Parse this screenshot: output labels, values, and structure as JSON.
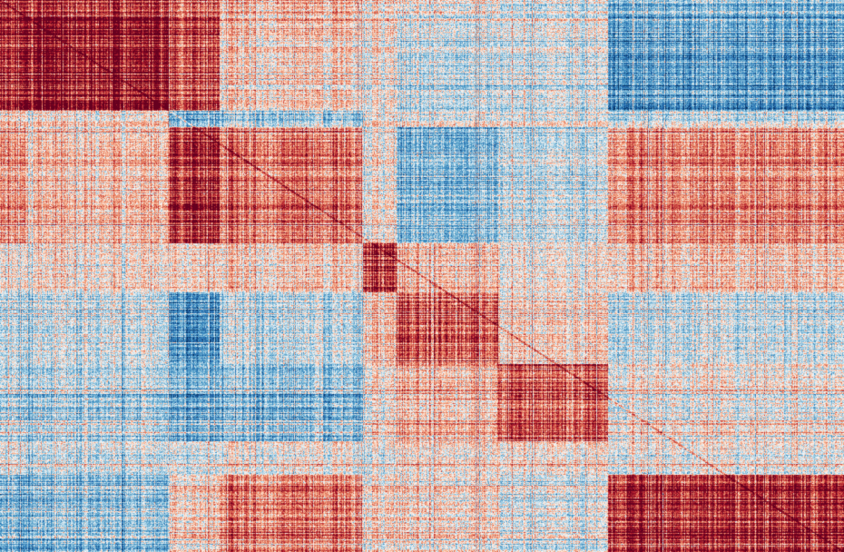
{
  "chart_data": {
    "type": "heatmap",
    "title": "",
    "xlabel": "",
    "ylabel": "",
    "colormap": "RdBu_r",
    "value_range": [
      -1,
      1
    ],
    "grid": false,
    "legend": "none",
    "colors": {
      "negative_strong": "#2166ac",
      "negative_mid": "#92c5de",
      "neutral": "#f7f7f7",
      "positive_mid": "#f4a582",
      "positive_strong": "#67001f"
    },
    "row_clusters": [
      {
        "id": "R0",
        "size": 0.03
      },
      {
        "id": "R1",
        "size": 0.17
      },
      {
        "id": "R2",
        "size": 0.03
      },
      {
        "id": "R3",
        "size": 0.21
      },
      {
        "id": "R4",
        "size": 0.09
      },
      {
        "id": "R5",
        "size": 0.13
      },
      {
        "id": "R6",
        "size": 0.14
      },
      {
        "id": "R7",
        "size": 0.06
      },
      {
        "id": "R8",
        "size": 0.14
      }
    ],
    "col_clusters": [
      {
        "id": "C0",
        "size": 0.03
      },
      {
        "id": "C1",
        "size": 0.17
      },
      {
        "id": "C2",
        "size": 0.06
      },
      {
        "id": "C3",
        "size": 0.17
      },
      {
        "id": "C4",
        "size": 0.04
      },
      {
        "id": "C5",
        "size": 0.12
      },
      {
        "id": "C6",
        "size": 0.13
      },
      {
        "id": "C7",
        "size": 0.28
      }
    ],
    "block_values": [
      [
        0.7,
        0.65,
        0.45,
        0.25,
        0.1,
        0.05,
        -0.05,
        -0.3
      ],
      [
        0.75,
        0.85,
        0.55,
        0.15,
        0.05,
        -0.1,
        -0.05,
        -0.45
      ],
      [
        0.1,
        0.05,
        -0.3,
        -0.2,
        0.05,
        0.0,
        0.0,
        -0.1
      ],
      [
        0.3,
        0.15,
        0.7,
        0.45,
        0.05,
        -0.3,
        -0.1,
        0.35
      ],
      [
        0.0,
        0.05,
        0.1,
        0.15,
        0.7,
        0.2,
        0.05,
        0.15
      ],
      [
        -0.15,
        -0.1,
        -0.45,
        -0.1,
        0.2,
        0.55,
        0.15,
        -0.1
      ],
      [
        -0.2,
        -0.2,
        -0.35,
        -0.3,
        0.05,
        0.2,
        0.55,
        0.0
      ],
      [
        -0.05,
        -0.1,
        -0.05,
        0.05,
        0.0,
        0.1,
        0.1,
        0.0
      ],
      [
        -0.4,
        -0.3,
        0.1,
        0.45,
        0.1,
        0.1,
        -0.05,
        0.75
      ]
    ]
  }
}
